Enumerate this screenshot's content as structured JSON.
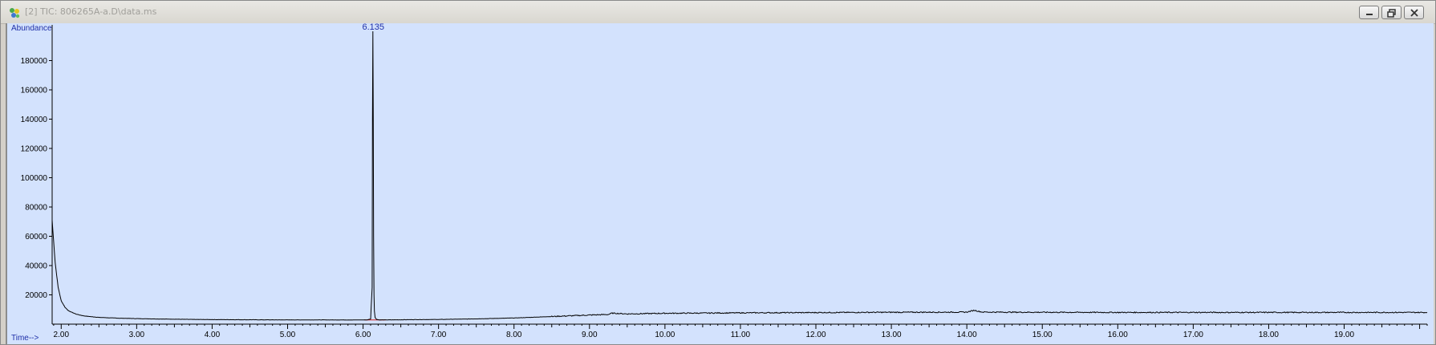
{
  "window": {
    "title": "[2] TIC: 806265A-a.D\\data.ms",
    "icon": "chromatogram-app-icon"
  },
  "chart_data": {
    "type": "line",
    "title": "",
    "xlabel": "Time-->",
    "ylabel": "Abundance",
    "xlim": [
      1.88,
      20.1
    ],
    "ylim": [
      0,
      200000
    ],
    "x_ticks": [
      "2.00",
      "3.00",
      "4.00",
      "5.00",
      "6.00",
      "7.00",
      "8.00",
      "9.00",
      "10.00",
      "11.00",
      "12.00",
      "13.00",
      "14.00",
      "15.00",
      "16.00",
      "17.00",
      "18.00",
      "19.00"
    ],
    "y_ticks": [
      "20000",
      "40000",
      "60000",
      "80000",
      "100000",
      "120000",
      "140000",
      "160000",
      "180000"
    ],
    "grid": false,
    "colors": {
      "trace": "#000000",
      "baseline_marker": "#d11f1f",
      "label": "#1f2fa8",
      "background": "#d3e2fd"
    },
    "series": [
      {
        "x": [
          1.88,
          1.92,
          1.96,
          2.0,
          2.05,
          2.1,
          2.2,
          2.3,
          2.5,
          2.8,
          3.2,
          3.6,
          4.0,
          4.5,
          5.0,
          5.5,
          5.9,
          6.05,
          6.1,
          6.12,
          6.125,
          6.13,
          6.135,
          6.14,
          6.145,
          6.15,
          6.16,
          6.18,
          6.22,
          6.3,
          6.5,
          7.0,
          7.5,
          8.0,
          8.5,
          9.0,
          9.25,
          9.3,
          9.5,
          10.0,
          11.0,
          12.0,
          13.0,
          14.0,
          14.1,
          14.15,
          14.2,
          14.3,
          15.0,
          16.0,
          17.0,
          18.0,
          19.0,
          20.1
        ],
        "y": [
          71000,
          42000,
          25000,
          16000,
          11500,
          9000,
          6800,
          5600,
          4600,
          4000,
          3600,
          3300,
          3100,
          3000,
          2900,
          2900,
          2850,
          2900,
          3500,
          25000,
          140000,
          200000,
          139000,
          60000,
          20000,
          9000,
          4500,
          3200,
          2900,
          2900,
          3000,
          3200,
          3600,
          4200,
          5200,
          6200,
          6600,
          7500,
          7000,
          7400,
          7700,
          7900,
          8100,
          8200,
          9500,
          8800,
          8300,
          8200,
          8100,
          8000,
          8000,
          8000,
          8000,
          8000
        ]
      }
    ],
    "annotations": [
      {
        "text": "6.135",
        "x": 6.135
      }
    ],
    "baseline_markers": [
      {
        "x1": 6.02,
        "x2": 6.3
      }
    ]
  }
}
